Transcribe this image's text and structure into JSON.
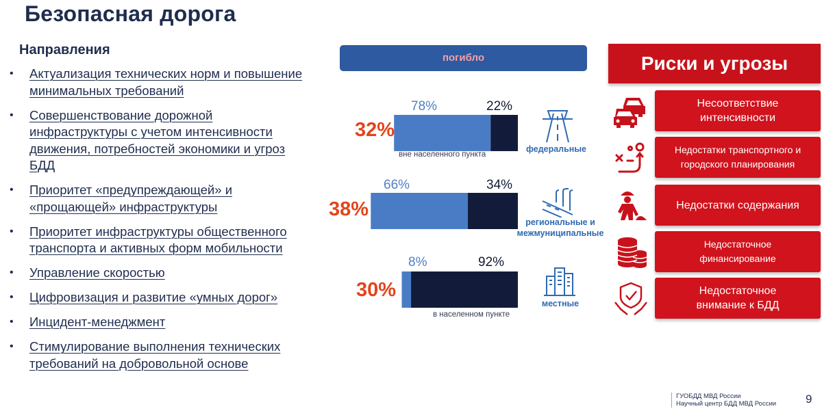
{
  "title": "Безопасная дорога",
  "directions": {
    "heading": "Направления",
    "items": [
      "Актуализация технических норм и повышение минимальных требований",
      "Совершенствование дорожной инфраструктуры с учетом интенсивности движения, потребностей экономики и угроз БДД",
      "Приоритет «предупреждающей» и «прощающей» инфраструктуры",
      "Приоритет инфраструктуры общественного транспорта и активных форм мобильности",
      "Управление скоростью",
      "Цифровизация и развитие «умных дорог»",
      "Инцидент-менеджмент",
      "Стимулирование выполнения технических требований на добровольной основе"
    ]
  },
  "chart_data": {
    "type": "bar",
    "title": "погибло",
    "legend": {
      "outside": "вне населенного пункта",
      "inside": "в населенном пункте"
    },
    "categories": [
      "федеральные",
      "региональные и межмуниципальные",
      "местные"
    ],
    "share_of_deaths": [
      32,
      38,
      30
    ],
    "share_of_deaths_labels": [
      "32%",
      "38%",
      "30%"
    ],
    "series": [
      {
        "name": "вне населенного пункта",
        "values": [
          78,
          66,
          8
        ],
        "labels": [
          "78%",
          "66%",
          "8%"
        ],
        "color": "#4a7cc6"
      },
      {
        "name": "в населенном пункте",
        "values": [
          22,
          34,
          92
        ],
        "labels": [
          "22%",
          "34%",
          "92%"
        ],
        "color": "#121c3a"
      }
    ],
    "road_labels": [
      {
        "line1": "федеральные",
        "line2": ""
      },
      {
        "line1": "региональные и",
        "line2": "межмуниципальные"
      },
      {
        "line1": "местные",
        "line2": ""
      }
    ]
  },
  "risks": {
    "heading": "Риски и угрозы",
    "items": [
      {
        "lines": [
          "Несоответствие",
          "интенсивности"
        ],
        "icon": "traffic-jam-icon"
      },
      {
        "lines": [
          "Недостатки транспортного и",
          "городского планирования"
        ],
        "icon": "route-planning-icon"
      },
      {
        "lines": [
          "Недостатки содержания"
        ],
        "icon": "road-worker-icon"
      },
      {
        "lines": [
          "Недостаточное",
          "финансирование"
        ],
        "icon": "coins-stack-icon"
      },
      {
        "lines": [
          "Недостаточное",
          "внимание к БДД"
        ],
        "icon": "safety-shield-icon"
      }
    ]
  },
  "colors": {
    "accent_red": "#c8121b",
    "navy": "#1f2d4e",
    "bar_light": "#4a7cc6",
    "bar_dark": "#121c3a",
    "percent_orange": "#e3441b"
  },
  "footer": {
    "org1": "ГУОБДД МВД России",
    "org2": "Научный центр БДД МВД России",
    "page": "9"
  }
}
